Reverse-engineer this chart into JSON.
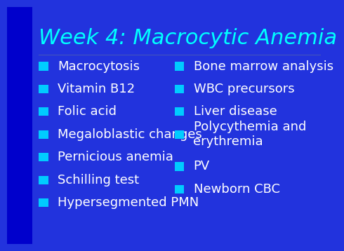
{
  "title": "Week 4: Macrocytic Anemia",
  "title_color": "#00FFFF",
  "title_fontsize": 22,
  "background_color_left": "#0000CC",
  "background_color_right": "#2233DD",
  "text_color": "#FFFFFF",
  "bullet_marker_color": "#00CCFF",
  "left_items": [
    "Macrocytosis",
    "Vitamin B12",
    "Folic acid",
    "Megaloblastic changes",
    "Pernicious anemia",
    "Schilling test",
    "Hypersegmented PMN"
  ],
  "right_items": [
    "Bone marrow analysis",
    "WBC precursors",
    "Liver disease",
    "Polycythemia and\nerythremia",
    "PV",
    "Newborn CBC"
  ],
  "item_fontsize": 13
}
